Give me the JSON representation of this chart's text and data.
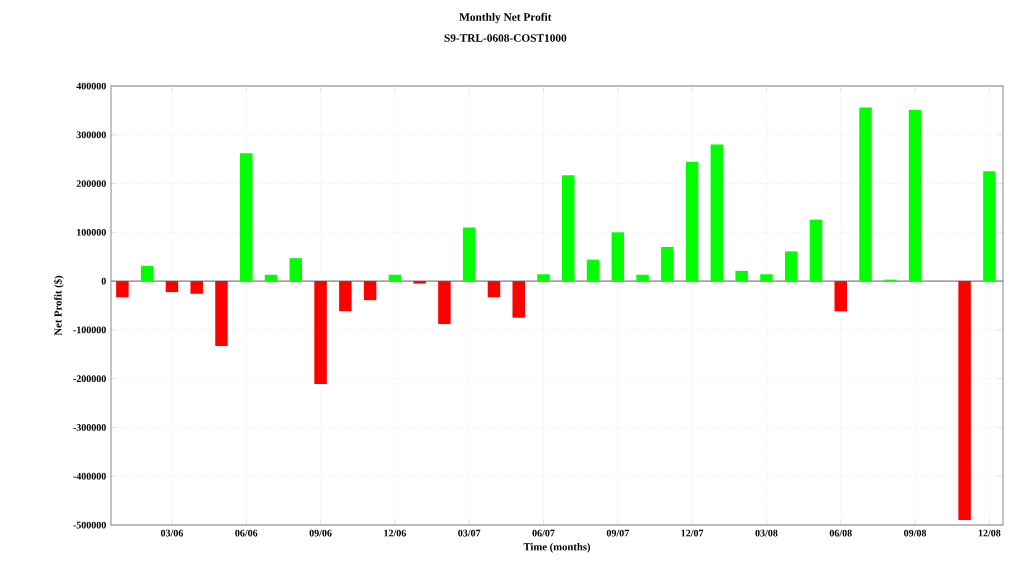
{
  "chart_data": {
    "type": "bar",
    "title": "Monthly Net Profit",
    "subtitle": "S9-TRL-0608-COST1000",
    "xlabel": "Time (months)",
    "ylabel": "Net Profit ($)",
    "categories": [
      null,
      null,
      "03/06",
      null,
      null,
      "06/06",
      null,
      null,
      "09/06",
      null,
      null,
      "12/06",
      null,
      null,
      "03/07",
      null,
      null,
      "06/07",
      null,
      null,
      "09/07",
      null,
      null,
      "12/07",
      null,
      null,
      "03/08",
      null,
      null,
      "06/08",
      null,
      null,
      "09/08",
      null,
      null,
      "12/08"
    ],
    "values": [
      -33000,
      31000,
      -22500,
      -26000,
      -133000,
      262000,
      13000,
      47000,
      -211000,
      -61500,
      -39000,
      13000,
      -5000,
      -88000,
      110000,
      -33000,
      -75000,
      14000,
      217000,
      44000,
      100000,
      13000,
      70000,
      244000,
      280000,
      21000,
      14000,
      61000,
      126000,
      -62000,
      356000,
      3000,
      351000,
      0,
      -490000,
      225000
    ],
    "colors": [
      "#ff0000",
      "#00ff00",
      "#ff0000",
      "#ff0000",
      "#ff0000",
      "#00ff00",
      "#00ff00",
      "#00ff00",
      "#ff0000",
      "#ff0000",
      "#ff0000",
      "#00ff00",
      "#ff0000",
      "#ff0000",
      "#00ff00",
      "#ff0000",
      "#ff0000",
      "#00ff00",
      "#00ff00",
      "#00ff00",
      "#00ff00",
      "#00ff00",
      "#00ff00",
      "#00ff00",
      "#00ff00",
      "#00ff00",
      "#00ff00",
      "#00ff00",
      "#00ff00",
      "#ff0000",
      "#00ff00",
      "#00ff00",
      "#00ff00",
      "#00ff00",
      "#ff0000",
      "#00ff00"
    ],
    "ylim": [
      -500000,
      400000
    ],
    "yticks": [
      -500000,
      -400000,
      -300000,
      -200000,
      -100000,
      0,
      100000,
      200000,
      300000,
      400000
    ],
    "grid": true
  }
}
